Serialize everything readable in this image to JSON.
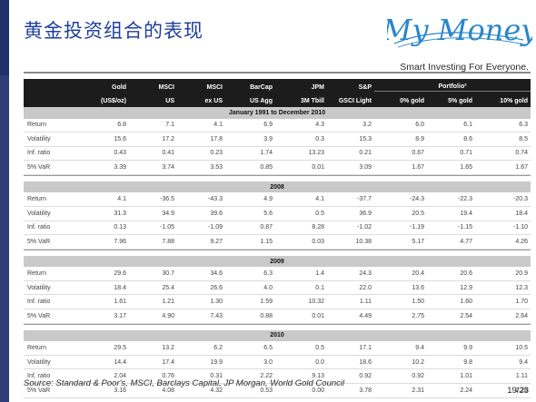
{
  "slide": {
    "title": "黄金投资组合的表现",
    "source": "Source: Standard & Poor's, MSCI, Barclays Capital, JP Morgan, World Gold Council",
    "page": "19/23"
  },
  "logo": {
    "brand": "My Money",
    "tagline": "Smart Investing For Everyone."
  },
  "table": {
    "header_top": [
      "Gold",
      "MSCI",
      "MSCI",
      "BarCap",
      "JPM",
      "S&P"
    ],
    "header_bottom": [
      "(US$/oz)",
      "US",
      "ex US",
      "US Agg",
      "3M Tbill",
      "GSCI Light"
    ],
    "portfolio_label": "Portfolio²",
    "portfolio_cols": [
      "0% gold",
      "5% gold",
      "10% gold"
    ],
    "sections": [
      {
        "title": "January 1991 to December 2010",
        "rows": [
          {
            "label": "Return",
            "values": [
              "6.8",
              "7.1",
              "4.1",
              "6.9",
              "4.3",
              "3.2",
              "6.0",
              "6.1",
              "6.3"
            ]
          },
          {
            "label": "Volatility",
            "values": [
              "15.6",
              "17.2",
              "17.8",
              "3.9",
              "0.3",
              "15.3",
              "8.9",
              "8.6",
              "8.5"
            ]
          },
          {
            "label": "Inf. ratio",
            "values": [
              "0.43",
              "0.41",
              "0.23",
              "1.74",
              "13.23",
              "0.21",
              "0.67",
              "0.71",
              "0.74"
            ]
          },
          {
            "label": "5% VaR",
            "values": [
              "3.39",
              "3.74",
              "3.53",
              "0.85",
              "0.01",
              "3.09",
              "1.67",
              "1.65",
              "1.67"
            ]
          }
        ]
      },
      {
        "title": "2008",
        "rows": [
          {
            "label": "Return",
            "values": [
              "4.1",
              "-36.5",
              "-43.3",
              "4.9",
              "4.1",
              "-37.7",
              "-24.3",
              "-22.3",
              "-20.3"
            ]
          },
          {
            "label": "Volatility",
            "values": [
              "31.3",
              "34.9",
              "39.6",
              "5.6",
              "0.5",
              "36.9",
              "20.5",
              "19.4",
              "18.4"
            ]
          },
          {
            "label": "Inf. ratio",
            "values": [
              "0.13",
              "-1.05",
              "-1.09",
              "0.87",
              "8.28",
              "-1.02",
              "-1.19",
              "-1.15",
              "-1.10"
            ]
          },
          {
            "label": "5% VaR",
            "values": [
              "7.96",
              "7.88",
              "9.27",
              "1.15",
              "0.03",
              "10.38",
              "5.17",
              "4.77",
              "4.26"
            ]
          }
        ]
      },
      {
        "title": "2009",
        "rows": [
          {
            "label": "Return",
            "values": [
              "29.6",
              "30.7",
              "34.6",
              "6.3",
              "1.4",
              "24.3",
              "20.4",
              "20.6",
              "20.9"
            ]
          },
          {
            "label": "Volatility",
            "values": [
              "18.4",
              "25.4",
              "26.6",
              "4.0",
              "0.1",
              "22.0",
              "13.6",
              "12.9",
              "12.3"
            ]
          },
          {
            "label": "Inf. ratio",
            "values": [
              "1.61",
              "1.21",
              "1.30",
              "1.59",
              "10.32",
              "1.11",
              "1.50",
              "1.60",
              "1.70"
            ]
          },
          {
            "label": "5% VaR",
            "values": [
              "3.17",
              "4.90",
              "7.43",
              "0.88",
              "0.01",
              "4.49",
              "2.75",
              "2.54",
              "2.64"
            ]
          }
        ]
      },
      {
        "title": "2010",
        "rows": [
          {
            "label": "Return",
            "values": [
              "29.5",
              "13.2",
              "6.2",
              "6.5",
              "0.5",
              "17.1",
              "9.4",
              "9.9",
              "10.5"
            ]
          },
          {
            "label": "Volatility",
            "values": [
              "14.4",
              "17.4",
              "19.9",
              "3.0",
              "0.0",
              "18.6",
              "10.2",
              "9.8",
              "9.4"
            ]
          },
          {
            "label": "Inf. ratio",
            "values": [
              "2.04",
              "0.76",
              "0.31",
              "2.22",
              "9.13",
              "0.92",
              "0.92",
              "1.01",
              "1.11"
            ]
          },
          {
            "label": "5% VaR",
            "values": [
              "3.16",
              "4.08",
              "4.32",
              "0.53",
              "0.00",
              "3.78",
              "2.31",
              "2.24",
              "2.26"
            ]
          }
        ]
      }
    ]
  },
  "colors": {
    "title": "#1f3f9a",
    "logo_blue": "#2a86c9",
    "header_bg": "#1d1c1c",
    "section_bg": "#c9c9c9",
    "left_bar": "#2e3d78"
  }
}
